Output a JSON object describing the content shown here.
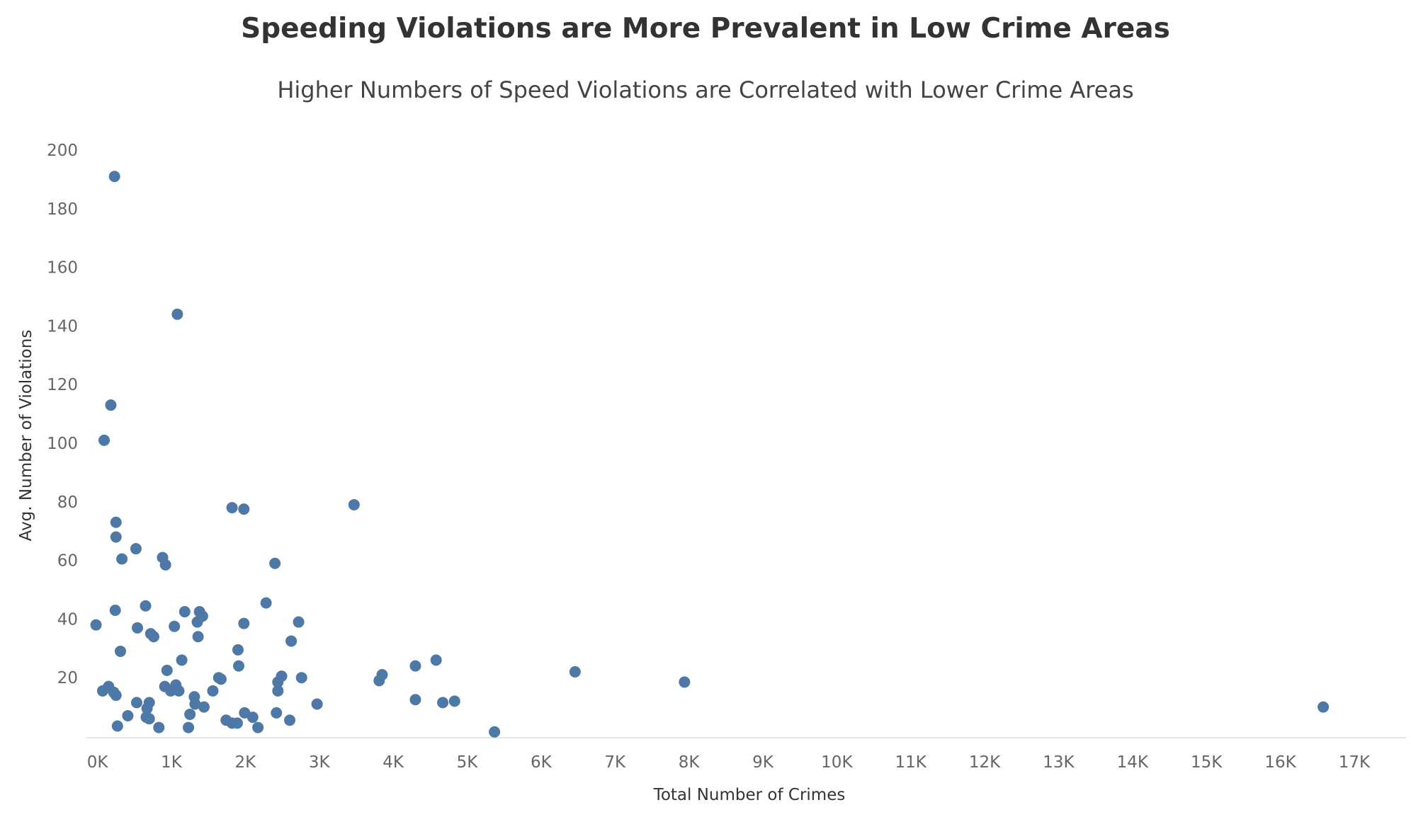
{
  "chart_data": {
    "type": "scatter",
    "title": "Speeding Violations are More Prevalent in Low Crime Areas",
    "subtitle": "Higher Numbers of Speed Violations are Correlated with Lower Crime Areas",
    "xlabel": "Total Number of Crimes",
    "ylabel": "Avg. Number of Violations",
    "xlim": [
      -150,
      17700
    ],
    "ylim": [
      0,
      200
    ],
    "x_ticks": [
      0,
      1000,
      2000,
      3000,
      4000,
      5000,
      6000,
      7000,
      8000,
      9000,
      10000,
      11000,
      12000,
      13000,
      14000,
      15000,
      16000,
      17000
    ],
    "x_tick_labels": [
      "0K",
      "1K",
      "2K",
      "3K",
      "4K",
      "5K",
      "6K",
      "7K",
      "8K",
      "9K",
      "10K",
      "11K",
      "12K",
      "13K",
      "14K",
      "15K",
      "16K",
      "17K"
    ],
    "y_ticks": [
      20,
      40,
      60,
      80,
      100,
      120,
      140,
      160,
      180,
      200
    ],
    "y_tick_labels": [
      "20",
      "40",
      "60",
      "80",
      "100",
      "120",
      "140",
      "160",
      "180",
      "200"
    ],
    "grid": false,
    "color": "#4e79a7",
    "points": [
      {
        "x": 230,
        "y": 191
      },
      {
        "x": 1080,
        "y": 144
      },
      {
        "x": 180,
        "y": 113
      },
      {
        "x": 90,
        "y": 101
      },
      {
        "x": 3470,
        "y": 79
      },
      {
        "x": 1820,
        "y": 78
      },
      {
        "x": 1980,
        "y": 77.5
      },
      {
        "x": 250,
        "y": 73
      },
      {
        "x": 250,
        "y": 68
      },
      {
        "x": 520,
        "y": 64
      },
      {
        "x": 330,
        "y": 60.5
      },
      {
        "x": 880,
        "y": 61
      },
      {
        "x": 920,
        "y": 58.5
      },
      {
        "x": 2400,
        "y": 59
      },
      {
        "x": 240,
        "y": 43
      },
      {
        "x": 650,
        "y": 44.5
      },
      {
        "x": 2280,
        "y": 45.5
      },
      {
        "x": 1180,
        "y": 42.5
      },
      {
        "x": 1380,
        "y": 42.5
      },
      {
        "x": 1420,
        "y": 41
      },
      {
        "x": -20,
        "y": 38
      },
      {
        "x": 540,
        "y": 37
      },
      {
        "x": 1040,
        "y": 37.5
      },
      {
        "x": 1350,
        "y": 39
      },
      {
        "x": 1980,
        "y": 38.5
      },
      {
        "x": 2720,
        "y": 39
      },
      {
        "x": 720,
        "y": 35
      },
      {
        "x": 760,
        "y": 34
      },
      {
        "x": 1360,
        "y": 34
      },
      {
        "x": 2620,
        "y": 32.5
      },
      {
        "x": 310,
        "y": 29
      },
      {
        "x": 1900,
        "y": 29.5
      },
      {
        "x": 1140,
        "y": 26
      },
      {
        "x": 1910,
        "y": 24
      },
      {
        "x": 4300,
        "y": 24
      },
      {
        "x": 4580,
        "y": 26
      },
      {
        "x": 940,
        "y": 22.5
      },
      {
        "x": 6460,
        "y": 22
      },
      {
        "x": 3850,
        "y": 21
      },
      {
        "x": 2490,
        "y": 20.5
      },
      {
        "x": 2760,
        "y": 20
      },
      {
        "x": 1640,
        "y": 20
      },
      {
        "x": 1670,
        "y": 19.5
      },
      {
        "x": 3810,
        "y": 19
      },
      {
        "x": 2440,
        "y": 18.5
      },
      {
        "x": 7940,
        "y": 18.5
      },
      {
        "x": 150,
        "y": 17
      },
      {
        "x": 910,
        "y": 17
      },
      {
        "x": 1060,
        "y": 17.5
      },
      {
        "x": 70,
        "y": 15.5
      },
      {
        "x": 220,
        "y": 15
      },
      {
        "x": 250,
        "y": 14
      },
      {
        "x": 990,
        "y": 15.5
      },
      {
        "x": 1100,
        "y": 15.5
      },
      {
        "x": 1560,
        "y": 15.5
      },
      {
        "x": 2440,
        "y": 15.5
      },
      {
        "x": 1310,
        "y": 13.5
      },
      {
        "x": 4300,
        "y": 12.5
      },
      {
        "x": 530,
        "y": 11.5
      },
      {
        "x": 700,
        "y": 11.5
      },
      {
        "x": 1320,
        "y": 11
      },
      {
        "x": 1440,
        "y": 10
      },
      {
        "x": 2970,
        "y": 11
      },
      {
        "x": 4670,
        "y": 11.5
      },
      {
        "x": 4830,
        "y": 12
      },
      {
        "x": 16580,
        "y": 10
      },
      {
        "x": 670,
        "y": 9.5
      },
      {
        "x": 1990,
        "y": 8
      },
      {
        "x": 2420,
        "y": 8
      },
      {
        "x": 1250,
        "y": 7.5
      },
      {
        "x": 410,
        "y": 7
      },
      {
        "x": 660,
        "y": 6.5
      },
      {
        "x": 700,
        "y": 6
      },
      {
        "x": 2100,
        "y": 6.5
      },
      {
        "x": 1740,
        "y": 5.5
      },
      {
        "x": 2600,
        "y": 5.5
      },
      {
        "x": 1820,
        "y": 4.5
      },
      {
        "x": 1890,
        "y": 4.5
      },
      {
        "x": 270,
        "y": 3.5
      },
      {
        "x": 830,
        "y": 3
      },
      {
        "x": 1230,
        "y": 3
      },
      {
        "x": 2170,
        "y": 3
      },
      {
        "x": 5370,
        "y": 1.5
      }
    ]
  }
}
